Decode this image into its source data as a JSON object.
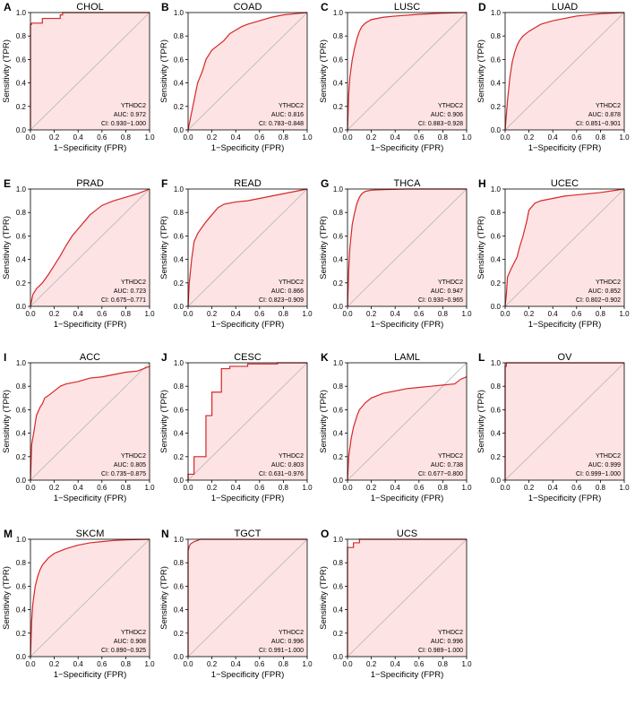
{
  "figure": {
    "xlabel": "1−Specificity (FPR)",
    "ylabel": "Sensitivity (TPR)",
    "gene": "YTHDC2",
    "auc_prefix": "AUC: ",
    "ci_prefix": "CI: ",
    "x_ticks": [
      "0.0",
      "0.2",
      "0.4",
      "0.6",
      "0.8",
      "1.0"
    ],
    "y_ticks": [
      "0.0",
      "0.2",
      "0.4",
      "0.6",
      "0.8",
      "1.0"
    ],
    "colors": {
      "curve": "#d62728",
      "fill": "#fde3e3",
      "diagonal": "#b5b5b5",
      "axis": "#000000"
    }
  },
  "chart_data": [
    {
      "letter": "A",
      "title": "CHOL",
      "type": "line",
      "xlim": [
        0,
        1
      ],
      "ylim": [
        0,
        1
      ],
      "auc": "0.972",
      "ci": "0.930−1.000",
      "x": [
        0,
        0,
        0.01,
        0.01,
        0.1,
        0.1,
        0.25,
        0.25,
        0.27,
        0.27,
        1
      ],
      "y": [
        0,
        0.9,
        0.9,
        0.91,
        0.91,
        0.95,
        0.95,
        0.98,
        0.98,
        1,
        1
      ]
    },
    {
      "letter": "B",
      "title": "COAD",
      "type": "line",
      "xlim": [
        0,
        1
      ],
      "ylim": [
        0,
        1
      ],
      "auc": "0.816",
      "ci": "0.783−0.848",
      "x": [
        0,
        0.02,
        0.05,
        0.08,
        0.1,
        0.12,
        0.15,
        0.2,
        0.25,
        0.3,
        0.35,
        0.4,
        0.45,
        0.5,
        0.6,
        0.7,
        0.8,
        0.9,
        1
      ],
      "y": [
        0,
        0.1,
        0.25,
        0.4,
        0.45,
        0.5,
        0.6,
        0.68,
        0.72,
        0.76,
        0.82,
        0.85,
        0.88,
        0.9,
        0.93,
        0.96,
        0.98,
        0.99,
        1
      ]
    },
    {
      "letter": "C",
      "title": "LUSC",
      "type": "line",
      "xlim": [
        0,
        1
      ],
      "ylim": [
        0,
        1
      ],
      "auc": "0.906",
      "ci": "0.883−0.928",
      "x": [
        0,
        0.01,
        0.02,
        0.04,
        0.06,
        0.08,
        0.1,
        0.12,
        0.15,
        0.2,
        0.3,
        0.4,
        0.6,
        0.8,
        1
      ],
      "y": [
        0,
        0.3,
        0.45,
        0.6,
        0.7,
        0.78,
        0.84,
        0.88,
        0.91,
        0.94,
        0.96,
        0.97,
        0.985,
        0.995,
        1
      ]
    },
    {
      "letter": "D",
      "title": "LUAD",
      "type": "line",
      "xlim": [
        0,
        1
      ],
      "ylim": [
        0,
        1
      ],
      "auc": "0.878",
      "ci": "0.851−0.901",
      "x": [
        0,
        0.02,
        0.04,
        0.06,
        0.08,
        0.1,
        0.12,
        0.15,
        0.2,
        0.25,
        0.3,
        0.4,
        0.5,
        0.6,
        0.8,
        1
      ],
      "y": [
        0,
        0.25,
        0.45,
        0.58,
        0.66,
        0.72,
        0.76,
        0.8,
        0.84,
        0.87,
        0.9,
        0.93,
        0.95,
        0.97,
        0.99,
        1
      ]
    },
    {
      "letter": "E",
      "title": "PRAD",
      "type": "line",
      "xlim": [
        0,
        1
      ],
      "ylim": [
        0,
        1
      ],
      "auc": "0.723",
      "ci": "0.675−0.771",
      "x": [
        0,
        0.02,
        0.05,
        0.1,
        0.15,
        0.2,
        0.25,
        0.3,
        0.35,
        0.4,
        0.45,
        0.5,
        0.55,
        0.6,
        0.7,
        0.8,
        0.9,
        1
      ],
      "y": [
        0,
        0.1,
        0.15,
        0.2,
        0.27,
        0.35,
        0.43,
        0.52,
        0.6,
        0.66,
        0.72,
        0.78,
        0.82,
        0.86,
        0.9,
        0.93,
        0.96,
        1
      ]
    },
    {
      "letter": "F",
      "title": "READ",
      "type": "line",
      "xlim": [
        0,
        1
      ],
      "ylim": [
        0,
        1
      ],
      "auc": "0.866",
      "ci": "0.823−0.909",
      "x": [
        0,
        0.01,
        0.03,
        0.05,
        0.08,
        0.1,
        0.15,
        0.2,
        0.25,
        0.3,
        0.4,
        0.5,
        0.6,
        0.7,
        0.8,
        0.9,
        1
      ],
      "y": [
        0,
        0.2,
        0.4,
        0.55,
        0.62,
        0.65,
        0.72,
        0.78,
        0.84,
        0.87,
        0.89,
        0.9,
        0.92,
        0.94,
        0.96,
        0.98,
        1
      ]
    },
    {
      "letter": "G",
      "title": "THCA",
      "type": "line",
      "xlim": [
        0,
        1
      ],
      "ylim": [
        0,
        1
      ],
      "auc": "0.947",
      "ci": "0.930−0.965",
      "x": [
        0,
        0.01,
        0.02,
        0.04,
        0.06,
        0.08,
        0.1,
        0.12,
        0.15,
        0.2,
        0.3,
        0.5,
        0.7,
        1
      ],
      "y": [
        0,
        0.3,
        0.5,
        0.7,
        0.8,
        0.88,
        0.93,
        0.96,
        0.98,
        0.99,
        0.995,
        1,
        1,
        1
      ]
    },
    {
      "letter": "H",
      "title": "UCEC",
      "type": "line",
      "xlim": [
        0,
        1
      ],
      "ylim": [
        0,
        1
      ],
      "auc": "0.852",
      "ci": "0.802−0.902",
      "x": [
        0,
        0.01,
        0.02,
        0.05,
        0.08,
        0.1,
        0.12,
        0.15,
        0.18,
        0.2,
        0.25,
        0.3,
        0.4,
        0.5,
        0.6,
        0.8,
        1
      ],
      "y": [
        0,
        0.1,
        0.25,
        0.32,
        0.38,
        0.42,
        0.5,
        0.6,
        0.72,
        0.82,
        0.88,
        0.9,
        0.92,
        0.94,
        0.95,
        0.97,
        1
      ]
    },
    {
      "letter": "I",
      "title": "ACC",
      "type": "line",
      "xlim": [
        0,
        1
      ],
      "ylim": [
        0,
        1
      ],
      "auc": "0.805",
      "ci": "0.735−0.875",
      "x": [
        0,
        0.01,
        0.03,
        0.05,
        0.08,
        0.1,
        0.12,
        0.15,
        0.2,
        0.25,
        0.3,
        0.4,
        0.5,
        0.6,
        0.7,
        0.8,
        0.9,
        1
      ],
      "y": [
        0,
        0.3,
        0.42,
        0.55,
        0.62,
        0.65,
        0.7,
        0.72,
        0.76,
        0.8,
        0.82,
        0.84,
        0.87,
        0.88,
        0.9,
        0.92,
        0.93,
        0.97
      ]
    },
    {
      "letter": "J",
      "title": "CESC",
      "type": "line",
      "xlim": [
        0,
        1
      ],
      "ylim": [
        0,
        1
      ],
      "auc": "0.803",
      "ci": "0.631−0.976",
      "x": [
        0,
        0,
        0.05,
        0.05,
        0.15,
        0.15,
        0.2,
        0.2,
        0.28,
        0.28,
        0.35,
        0.35,
        0.5,
        0.5,
        0.75,
        0.75,
        1
      ],
      "y": [
        0,
        0.05,
        0.05,
        0.2,
        0.2,
        0.55,
        0.55,
        0.75,
        0.75,
        0.95,
        0.95,
        0.97,
        0.97,
        0.99,
        0.99,
        1,
        1
      ]
    },
    {
      "letter": "K",
      "title": "LAML",
      "type": "line",
      "xlim": [
        0,
        1
      ],
      "ylim": [
        0,
        1
      ],
      "auc": "0.738",
      "ci": "0.677−0.800",
      "x": [
        0,
        0.01,
        0.03,
        0.05,
        0.08,
        0.1,
        0.15,
        0.2,
        0.25,
        0.3,
        0.4,
        0.5,
        0.6,
        0.7,
        0.8,
        0.9,
        0.95,
        1
      ],
      "y": [
        0,
        0.2,
        0.35,
        0.45,
        0.55,
        0.6,
        0.66,
        0.7,
        0.72,
        0.74,
        0.76,
        0.78,
        0.79,
        0.8,
        0.81,
        0.82,
        0.86,
        0.88
      ]
    },
    {
      "letter": "L",
      "title": "OV",
      "type": "line",
      "xlim": [
        0,
        1
      ],
      "ylim": [
        0,
        1
      ],
      "auc": "0.999",
      "ci": "0.999−1.000",
      "x": [
        0,
        0,
        0.01,
        0.01,
        1
      ],
      "y": [
        0,
        0.97,
        0.97,
        1,
        1
      ]
    },
    {
      "letter": "M",
      "title": "SKCM",
      "type": "line",
      "xlim": [
        0,
        1
      ],
      "ylim": [
        0,
        1
      ],
      "auc": "0.908",
      "ci": "0.890−0.925",
      "x": [
        0,
        0.01,
        0.02,
        0.04,
        0.06,
        0.08,
        0.1,
        0.15,
        0.2,
        0.25,
        0.3,
        0.4,
        0.5,
        0.6,
        0.7,
        0.8,
        1
      ],
      "y": [
        0,
        0.3,
        0.45,
        0.6,
        0.68,
        0.74,
        0.78,
        0.84,
        0.88,
        0.9,
        0.92,
        0.95,
        0.97,
        0.98,
        0.99,
        0.995,
        1
      ]
    },
    {
      "letter": "N",
      "title": "TGCT",
      "type": "line",
      "xlim": [
        0,
        1
      ],
      "ylim": [
        0,
        1
      ],
      "auc": "0.996",
      "ci": "0.991−1.000",
      "x": [
        0,
        0,
        0.01,
        0.02,
        0.05,
        0.08,
        0.1,
        1
      ],
      "y": [
        0,
        0.9,
        0.94,
        0.96,
        0.98,
        0.99,
        1,
        1
      ]
    },
    {
      "letter": "O",
      "title": "UCS",
      "type": "line",
      "xlim": [
        0,
        1
      ],
      "ylim": [
        0,
        1
      ],
      "auc": "0.996",
      "ci": "0.989−1.000",
      "x": [
        0,
        0,
        0.05,
        0.05,
        0.1,
        0.1,
        1
      ],
      "y": [
        0,
        0.93,
        0.93,
        0.97,
        0.97,
        1,
        1
      ]
    }
  ]
}
